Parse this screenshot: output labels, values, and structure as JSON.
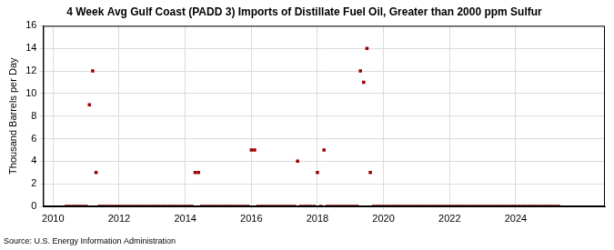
{
  "chart_data": {
    "type": "scatter",
    "title": "4 Week Avg Gulf Coast (PADD 3) Imports of Distillate Fuel Oil, Greater than 2000 ppm Sulfur",
    "y_label": "Thousand Barrels per Day",
    "source": "Source: U.S. Energy Information Administration",
    "color": "#990000",
    "marker": "square",
    "grid": true,
    "xlim": [
      2009.7,
      2026.7
    ],
    "xticks": [
      2010,
      2012,
      2014,
      2016,
      2018,
      2020,
      2022,
      2024
    ],
    "ylim": [
      0,
      16
    ],
    "yticks": [
      0,
      2,
      4,
      6,
      8,
      10,
      12,
      14,
      16
    ],
    "x": [
      2010.4,
      2010.5,
      2010.6,
      2010.7,
      2010.8,
      2010.9,
      2011.0,
      2011.1,
      2011.2,
      2011.3,
      2011.4,
      2011.5,
      2011.6,
      2011.7,
      2011.8,
      2011.9,
      2012.0,
      2012.1,
      2012.2,
      2012.3,
      2012.4,
      2012.5,
      2012.6,
      2012.7,
      2012.8,
      2012.9,
      2013.0,
      2013.1,
      2013.2,
      2013.3,
      2013.4,
      2013.5,
      2013.6,
      2013.7,
      2013.8,
      2013.9,
      2014.0,
      2014.1,
      2014.2,
      2014.3,
      2014.4,
      2014.5,
      2014.6,
      2014.7,
      2014.8,
      2014.9,
      2015.0,
      2015.1,
      2015.2,
      2015.3,
      2015.4,
      2015.5,
      2015.6,
      2015.7,
      2015.8,
      2015.9,
      2016.0,
      2016.1,
      2016.2,
      2016.3,
      2016.4,
      2016.5,
      2016.6,
      2016.7,
      2016.8,
      2016.9,
      2017.0,
      2017.1,
      2017.2,
      2017.3,
      2017.4,
      2017.5,
      2017.6,
      2017.7,
      2017.8,
      2017.9,
      2018.0,
      2018.1,
      2018.2,
      2018.3,
      2018.4,
      2018.5,
      2018.6,
      2018.7,
      2018.8,
      2018.9,
      2019.0,
      2019.1,
      2019.2,
      2019.3,
      2019.4,
      2019.5,
      2019.6,
      2019.7,
      2019.8,
      2019.9,
      2020.0,
      2020.1,
      2020.2,
      2020.3,
      2020.4,
      2020.5,
      2020.6,
      2020.7,
      2020.8,
      2020.9,
      2021.0,
      2021.1,
      2021.2,
      2021.3,
      2021.4,
      2021.5,
      2021.6,
      2021.7,
      2021.8,
      2021.9,
      2022.0,
      2022.1,
      2022.2,
      2022.3,
      2022.4,
      2022.5,
      2022.6,
      2022.7,
      2022.8,
      2022.9,
      2023.0,
      2023.1,
      2023.2,
      2023.3,
      2023.4,
      2023.5,
      2023.6,
      2023.7,
      2023.8,
      2023.9,
      2024.0,
      2024.1,
      2024.2,
      2024.3,
      2024.4,
      2024.5,
      2024.6,
      2024.7,
      2024.8,
      2024.9,
      2025.0,
      2025.1,
      2025.2,
      2025.3
    ],
    "values": [
      0,
      0,
      0,
      0,
      0,
      0,
      0,
      9,
      12,
      3,
      0,
      0,
      0,
      0,
      0,
      0,
      0,
      0,
      0,
      0,
      0,
      0,
      0,
      0,
      0,
      0,
      0,
      0,
      0,
      0,
      0,
      0,
      0,
      0,
      0,
      0,
      0,
      0,
      0,
      3,
      3,
      0,
      0,
      0,
      0,
      0,
      0,
      0,
      0,
      0,
      0,
      0,
      0,
      0,
      0,
      0,
      5,
      5,
      0,
      0,
      0,
      0,
      0,
      0,
      0,
      0,
      0,
      0,
      0,
      0,
      4,
      0,
      0,
      0,
      0,
      0,
      3,
      0,
      5,
      0,
      0,
      0,
      0,
      0,
      0,
      0,
      0,
      0,
      0,
      12,
      11,
      14,
      3,
      0,
      0,
      0,
      0,
      0,
      0,
      0,
      0,
      0,
      0,
      0,
      0,
      0,
      0,
      0,
      0,
      0,
      0,
      0,
      0,
      0,
      0,
      0,
      0,
      0,
      0,
      0,
      0,
      0,
      0,
      0,
      0,
      0,
      0,
      0,
      0,
      0,
      0,
      0,
      0,
      0,
      0,
      0,
      0,
      0,
      0,
      0,
      0,
      0,
      0,
      0,
      0,
      0,
      0,
      0,
      0,
      0
    ]
  }
}
